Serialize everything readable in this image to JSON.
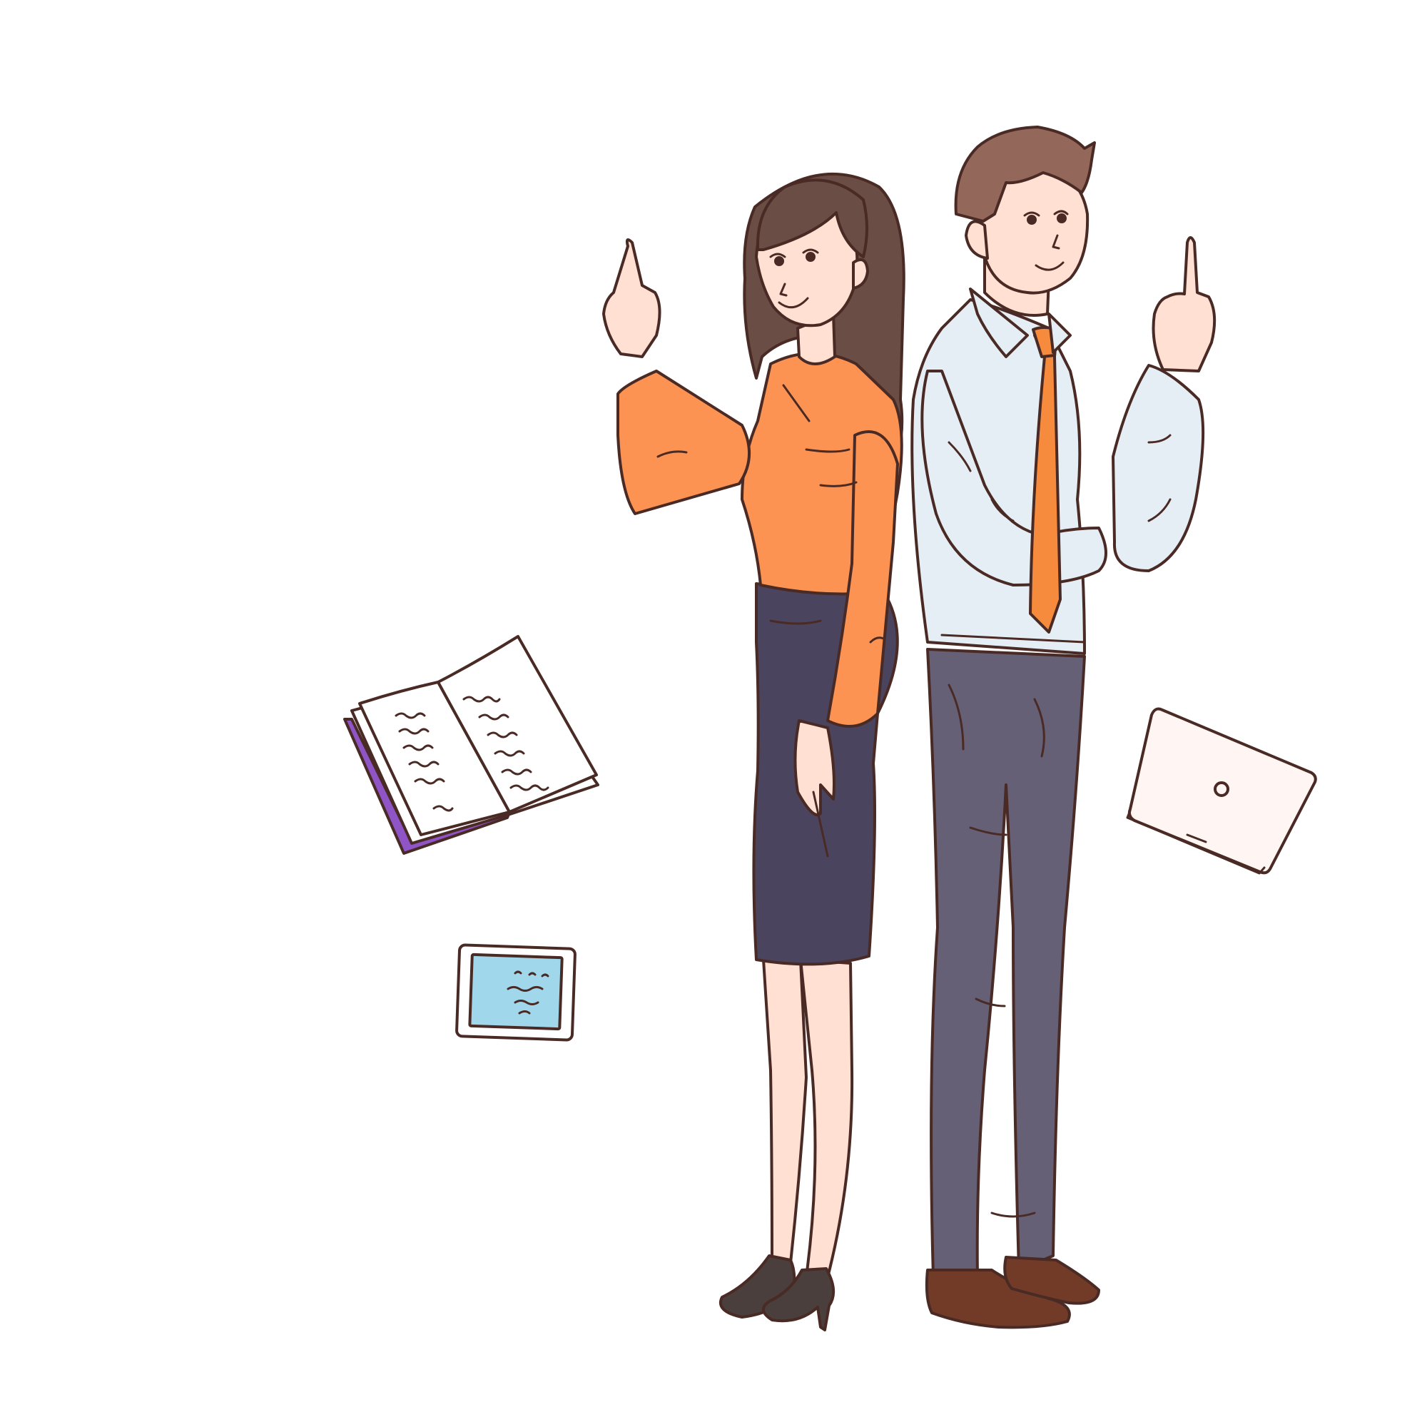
{
  "scene": {
    "subject": "illustration",
    "colors": {
      "background": "#ffffff",
      "outline": "#4a2a24",
      "skin": "#ffe0d2",
      "woman_hair": "#6a4d45",
      "woman_blouse": "#fd9352",
      "woman_skirt": "#4b445e",
      "man_hair": "#93675a",
      "man_shirt": "#e6eef5",
      "man_tie": "#f78b3d",
      "man_trousers": "#666077",
      "shoes_woman": "#4a3f3c",
      "shoes_man": "#713b28",
      "book_cover": "#8f55c6",
      "book_pages": "#ffffff",
      "tablet_screen": "#a1d7ea",
      "laptop": "#fff5f2"
    },
    "objects": [
      {
        "name": "woman",
        "icon": "woman-pointing-up"
      },
      {
        "name": "man",
        "icon": "man-pointing-up"
      },
      {
        "name": "open-book",
        "icon": "open-book-icon"
      },
      {
        "name": "tablet",
        "icon": "tablet-icon"
      },
      {
        "name": "closed-laptop",
        "icon": "laptop-icon"
      }
    ]
  }
}
